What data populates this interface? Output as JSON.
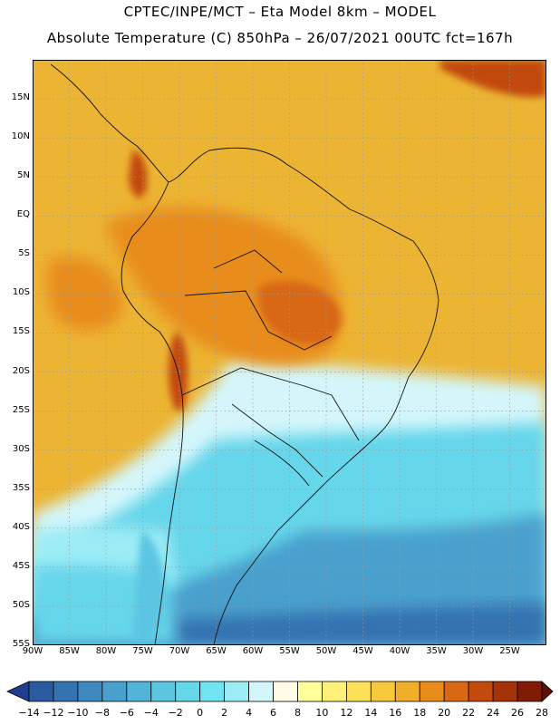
{
  "title": {
    "line1": "CPTEC/INPE/MCT –  Eta Model 8km – MODEL",
    "line2": "Absolute Temperature (C) 850hPa – 26/07/2021 00UTC fct=167h"
  },
  "map": {
    "latitude_labels": [
      "15N",
      "10N",
      "5N",
      "EQ",
      "5S",
      "10S",
      "15S",
      "20S",
      "25S",
      "30S",
      "35S",
      "40S",
      "45S",
      "50S",
      "55S"
    ],
    "longitude_labels": [
      "90W",
      "85W",
      "80W",
      "75W",
      "70W",
      "65W",
      "60W",
      "55W",
      "50W",
      "45W",
      "40W",
      "35W",
      "30W",
      "25W"
    ],
    "bounds": {
      "lon_min": -90,
      "lon_max": -20,
      "lat_min": -55,
      "lat_max": 20
    }
  },
  "colorbar": {
    "labels": [
      "-14",
      "-12",
      "-10",
      "-8",
      "-6",
      "-4",
      "-2",
      "0",
      "2",
      "4",
      "6",
      "8",
      "10",
      "12",
      "14",
      "16",
      "18",
      "20",
      "22",
      "24",
      "26",
      "28"
    ],
    "colors": [
      "#1f3e8f",
      "#2a5aa0",
      "#3572b0",
      "#3f88bf",
      "#4aa0cd",
      "#52b4d9",
      "#5cc6e2",
      "#66d6ea",
      "#70e4f0",
      "#9cecf6",
      "#d4f6fb",
      "#fffbe6",
      "#ffff9c",
      "#fff07a",
      "#fde05a",
      "#f8c83c",
      "#f1ae28",
      "#e88c1c",
      "#d86812",
      "#c24a0c",
      "#a63208",
      "#801c06",
      "#5e0e04"
    ]
  },
  "regions": {
    "land_color": "#ecb433",
    "warm_color": "#e88c1c",
    "hot_color": "#c24a0c",
    "cool_color": "#9cecf6",
    "cold_color": "#66d6ea",
    "ocean_warm": "#f1ae28",
    "ocean_cool": "#4aa0cd",
    "ocean_cold": "#3572b0"
  }
}
